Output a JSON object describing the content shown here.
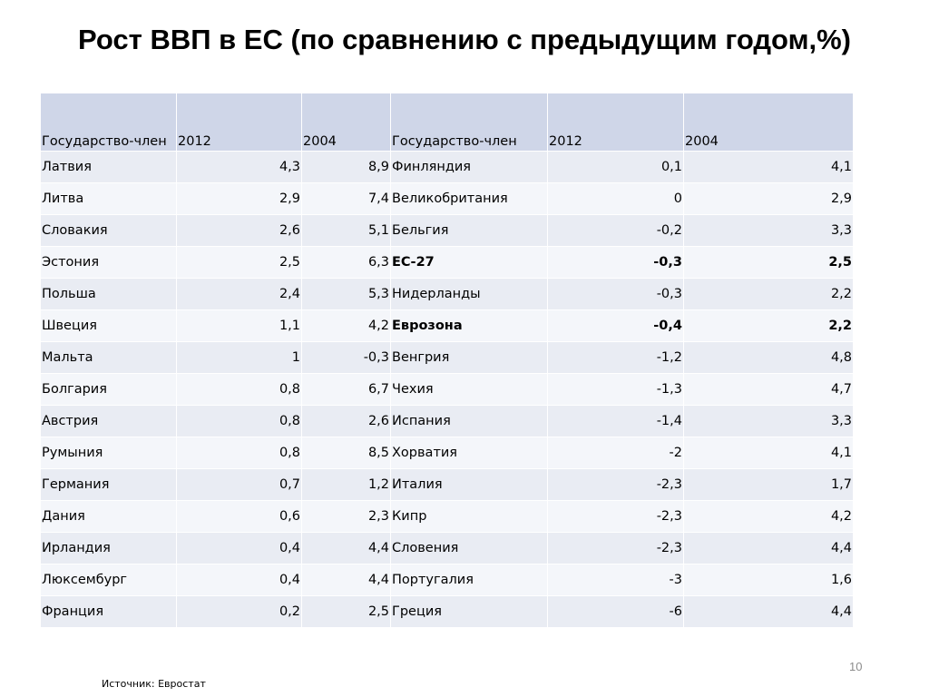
{
  "title": "Рост ВВП в ЕС (по сравнению с предыдущим годом,%)",
  "table": {
    "headers": [
      "Государство-член",
      "2012",
      "2004",
      "Государство-член",
      "2012",
      "2004"
    ],
    "rows": [
      {
        "left": {
          "name": "Латвия",
          "y2012": "4,3",
          "y2004": "8,9"
        },
        "right": {
          "name": "Финляндия",
          "y2012": "0,1",
          "y2004": "4,1",
          "bold": false
        }
      },
      {
        "left": {
          "name": "Литва",
          "y2012": "2,9",
          "y2004": "7,4"
        },
        "right": {
          "name": "Великобритания",
          "y2012": "0",
          "y2004": "2,9",
          "bold": false
        }
      },
      {
        "left": {
          "name": "Словакия",
          "y2012": "2,6",
          "y2004": "5,1"
        },
        "right": {
          "name": "Бельгия",
          "y2012": "-0,2",
          "y2004": "3,3",
          "bold": false
        }
      },
      {
        "left": {
          "name": "Эстония",
          "y2012": "2,5",
          "y2004": "6,3"
        },
        "right": {
          "name": "ЕС-27",
          "y2012": "-0,3",
          "y2004": "2,5",
          "bold": true
        }
      },
      {
        "left": {
          "name": "Польша",
          "y2012": "2,4",
          "y2004": "5,3"
        },
        "right": {
          "name": "Нидерланды",
          "y2012": "-0,3",
          "y2004": "2,2",
          "bold": false
        }
      },
      {
        "left": {
          "name": "Швеция",
          "y2012": "1,1",
          "y2004": "4,2"
        },
        "right": {
          "name": "Еврозона",
          "y2012": "-0,4",
          "y2004": "2,2",
          "bold": true
        }
      },
      {
        "left": {
          "name": "Мальта",
          "y2012": "1",
          "y2004": "-0,3"
        },
        "right": {
          "name": "Венгрия",
          "y2012": "-1,2",
          "y2004": "4,8",
          "bold": false
        }
      },
      {
        "left": {
          "name": "Болгария",
          "y2012": "0,8",
          "y2004": "6,7"
        },
        "right": {
          "name": "Чехия",
          "y2012": "-1,3",
          "y2004": "4,7",
          "bold": false
        }
      },
      {
        "left": {
          "name": "Австрия",
          "y2012": "0,8",
          "y2004": "2,6"
        },
        "right": {
          "name": "Испания",
          "y2012": "-1,4",
          "y2004": "3,3",
          "bold": false
        }
      },
      {
        "left": {
          "name": "Румыния",
          "y2012": "0,8",
          "y2004": "8,5"
        },
        "right": {
          "name": "Хорватия",
          "y2012": "-2",
          "y2004": "4,1",
          "bold": false
        }
      },
      {
        "left": {
          "name": "Германия",
          "y2012": "0,7",
          "y2004": "1,2"
        },
        "right": {
          "name": "Италия",
          "y2012": "-2,3",
          "y2004": "1,7",
          "bold": false
        }
      },
      {
        "left": {
          "name": "Дания",
          "y2012": "0,6",
          "y2004": "2,3"
        },
        "right": {
          "name": "Кипр",
          "y2012": "-2,3",
          "y2004": "4,2",
          "bold": false
        }
      },
      {
        "left": {
          "name": "Ирландия",
          "y2012": "0,4",
          "y2004": "4,4"
        },
        "right": {
          "name": "Словения",
          "y2012": "-2,3",
          "y2004": "4,4",
          "bold": false
        }
      },
      {
        "left": {
          "name": "Люксембург",
          "y2012": "0,4",
          "y2004": "4,4"
        },
        "right": {
          "name": "Португалия",
          "y2012": "-3",
          "y2004": "1,6",
          "bold": false
        }
      },
      {
        "left": {
          "name": "Франция",
          "y2012": "0,2",
          "y2004": "2,5"
        },
        "right": {
          "name": "Греция",
          "y2012": "-6",
          "y2004": "4,4",
          "bold": false
        }
      }
    ]
  },
  "page_number": "10",
  "source": "Источник: Евростат",
  "colors": {
    "header_bg": "#cfd6e8",
    "row_bg": "#e9ecf3",
    "row_alt_bg": "#f4f6fa",
    "page_number": "#8c8c8c"
  }
}
